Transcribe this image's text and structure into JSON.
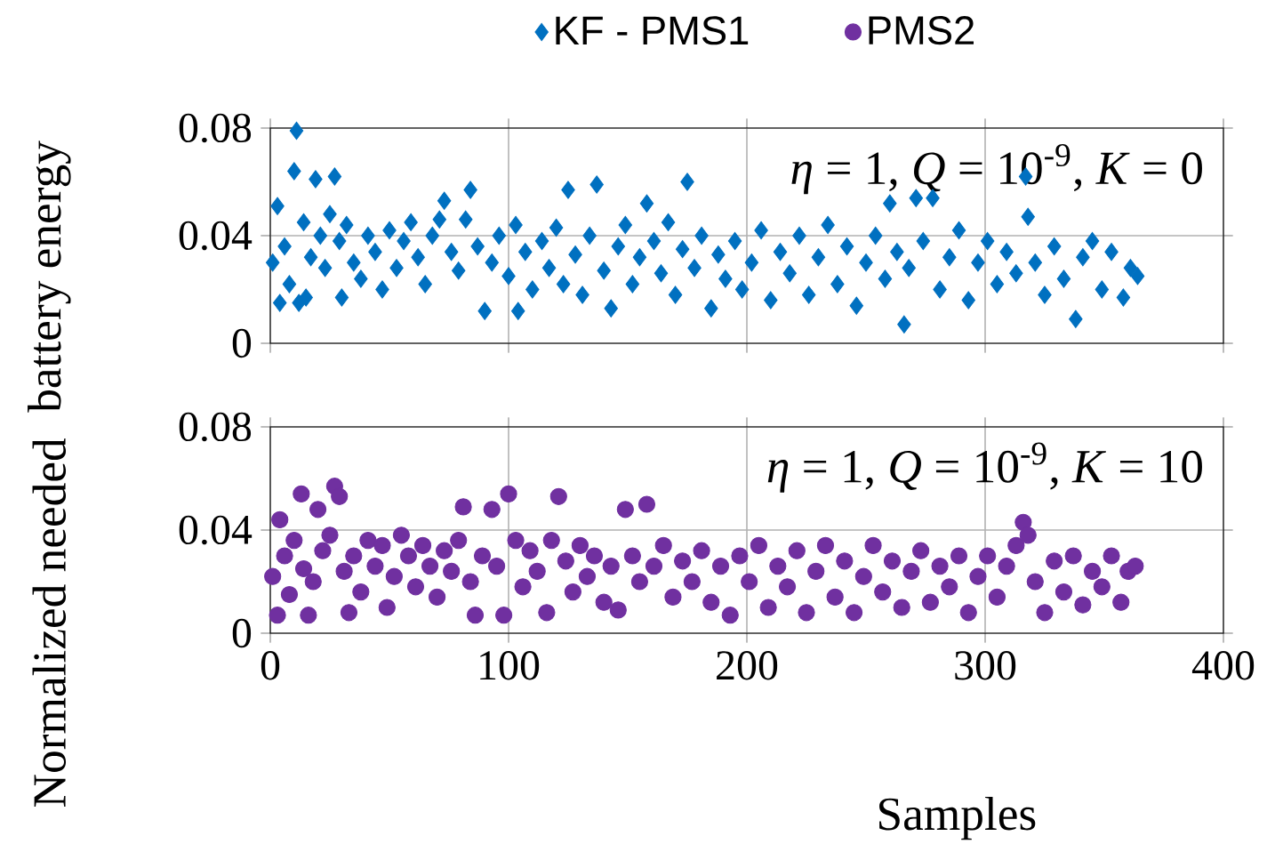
{
  "chart_data": [
    {
      "type": "scatter",
      "ylabel": "battery energy",
      "xlim": [
        0,
        400
      ],
      "xticks": [
        0,
        100,
        200,
        300,
        400
      ],
      "ylim": [
        0,
        0.08
      ],
      "yticks": [
        0,
        0.04,
        0.08
      ],
      "grid": true,
      "legend": "top",
      "marker": "diamond",
      "tick_labels": "y",
      "annotations": [
        "*η* = 1, *Q* = 10$^{-9}$, *K* = 0"
      ],
      "series": [
        {
          "name": "KF - PMS1",
          "color": "#0070c0",
          "x": [
            1,
            3,
            4,
            6,
            8,
            10,
            11,
            12,
            14,
            15,
            17,
            19,
            21,
            23,
            25,
            27,
            29,
            30,
            32,
            35,
            38,
            41,
            44,
            47,
            50,
            53,
            56,
            59,
            62,
            65,
            68,
            71,
            73,
            76,
            79,
            82,
            84,
            87,
            90,
            93,
            96,
            100,
            103,
            104,
            107,
            110,
            114,
            117,
            120,
            123,
            125,
            128,
            131,
            134,
            137,
            140,
            143,
            146,
            149,
            152,
            155,
            158,
            161,
            164,
            167,
            170,
            173,
            175,
            178,
            181,
            185,
            188,
            191,
            195,
            198,
            202,
            206,
            210,
            214,
            218,
            222,
            226,
            230,
            234,
            238,
            242,
            246,
            250,
            254,
            258,
            260,
            263,
            266,
            268,
            271,
            274,
            278,
            281,
            285,
            289,
            293,
            297,
            301,
            305,
            309,
            313,
            317,
            318,
            321,
            325,
            329,
            333,
            338,
            341,
            345,
            349,
            353,
            358,
            361,
            364
          ],
          "values": [
            0.03,
            0.051,
            0.015,
            0.036,
            0.022,
            0.064,
            0.079,
            0.015,
            0.045,
            0.017,
            0.032,
            0.061,
            0.04,
            0.028,
            0.048,
            0.062,
            0.038,
            0.017,
            0.044,
            0.03,
            0.024,
            0.04,
            0.034,
            0.02,
            0.042,
            0.028,
            0.038,
            0.045,
            0.032,
            0.022,
            0.04,
            0.046,
            0.053,
            0.034,
            0.027,
            0.046,
            0.057,
            0.036,
            0.012,
            0.03,
            0.04,
            0.025,
            0.044,
            0.012,
            0.034,
            0.02,
            0.038,
            0.028,
            0.043,
            0.022,
            0.057,
            0.033,
            0.018,
            0.04,
            0.059,
            0.027,
            0.013,
            0.036,
            0.044,
            0.022,
            0.032,
            0.052,
            0.038,
            0.026,
            0.045,
            0.018,
            0.035,
            0.06,
            0.028,
            0.04,
            0.013,
            0.033,
            0.024,
            0.038,
            0.02,
            0.03,
            0.042,
            0.016,
            0.034,
            0.026,
            0.04,
            0.018,
            0.032,
            0.044,
            0.022,
            0.036,
            0.014,
            0.03,
            0.04,
            0.024,
            0.052,
            0.034,
            0.007,
            0.028,
            0.054,
            0.038,
            0.054,
            0.02,
            0.032,
            0.042,
            0.016,
            0.03,
            0.038,
            0.022,
            0.034,
            0.026,
            0.062,
            0.047,
            0.03,
            0.018,
            0.036,
            0.024,
            0.009,
            0.032,
            0.038,
            0.02,
            0.034,
            0.017,
            0.028,
            0.025
          ]
        }
      ]
    },
    {
      "type": "scatter",
      "ylabel": "Normalized needed",
      "xlabel": "Samples",
      "xlim": [
        0,
        400
      ],
      "xticks": [
        0,
        100,
        200,
        300,
        400
      ],
      "ylim": [
        0,
        0.08
      ],
      "yticks": [
        0,
        0.04,
        0.08
      ],
      "grid": true,
      "legend": "top",
      "marker": "circle",
      "annotations": [
        "*η* = 1, *Q* = 10$^{-9}$, *K* = 10"
      ],
      "series": [
        {
          "name": "PMS2",
          "color": "#7030a0",
          "x": [
            1,
            3,
            4,
            6,
            8,
            10,
            13,
            14,
            16,
            18,
            20,
            22,
            25,
            27,
            29,
            31,
            33,
            35,
            38,
            41,
            44,
            47,
            49,
            52,
            55,
            58,
            61,
            64,
            67,
            70,
            73,
            76,
            79,
            81,
            84,
            86,
            89,
            93,
            95,
            98,
            100,
            103,
            106,
            109,
            112,
            116,
            118,
            121,
            124,
            127,
            130,
            133,
            136,
            140,
            143,
            146,
            149,
            152,
            155,
            158,
            161,
            165,
            169,
            173,
            177,
            181,
            185,
            189,
            193,
            197,
            201,
            205,
            209,
            213,
            217,
            221,
            225,
            229,
            233,
            237,
            241,
            245,
            249,
            253,
            257,
            261,
            265,
            269,
            273,
            277,
            281,
            285,
            289,
            293,
            297,
            301,
            305,
            309,
            313,
            316,
            318,
            321,
            325,
            329,
            333,
            337,
            341,
            345,
            349,
            353,
            357,
            360,
            363
          ],
          "values": [
            0.022,
            0.007,
            0.044,
            0.03,
            0.015,
            0.036,
            0.054,
            0.025,
            0.007,
            0.02,
            0.048,
            0.032,
            0.038,
            0.057,
            0.053,
            0.024,
            0.008,
            0.03,
            0.016,
            0.036,
            0.026,
            0.034,
            0.01,
            0.022,
            0.038,
            0.03,
            0.018,
            0.034,
            0.026,
            0.014,
            0.032,
            0.024,
            0.036,
            0.049,
            0.02,
            0.007,
            0.03,
            0.048,
            0.026,
            0.007,
            0.054,
            0.036,
            0.018,
            0.032,
            0.024,
            0.008,
            0.036,
            0.053,
            0.028,
            0.016,
            0.034,
            0.022,
            0.03,
            0.012,
            0.026,
            0.009,
            0.048,
            0.03,
            0.02,
            0.05,
            0.026,
            0.034,
            0.014,
            0.028,
            0.02,
            0.032,
            0.012,
            0.026,
            0.007,
            0.03,
            0.02,
            0.034,
            0.01,
            0.026,
            0.018,
            0.032,
            0.008,
            0.024,
            0.034,
            0.014,
            0.028,
            0.008,
            0.022,
            0.034,
            0.016,
            0.028,
            0.01,
            0.024,
            0.032,
            0.012,
            0.026,
            0.018,
            0.03,
            0.008,
            0.022,
            0.03,
            0.014,
            0.026,
            0.034,
            0.043,
            0.038,
            0.02,
            0.008,
            0.028,
            0.016,
            0.03,
            0.011,
            0.024,
            0.018,
            0.03,
            0.012,
            0.024,
            0.026
          ]
        }
      ]
    }
  ]
}
